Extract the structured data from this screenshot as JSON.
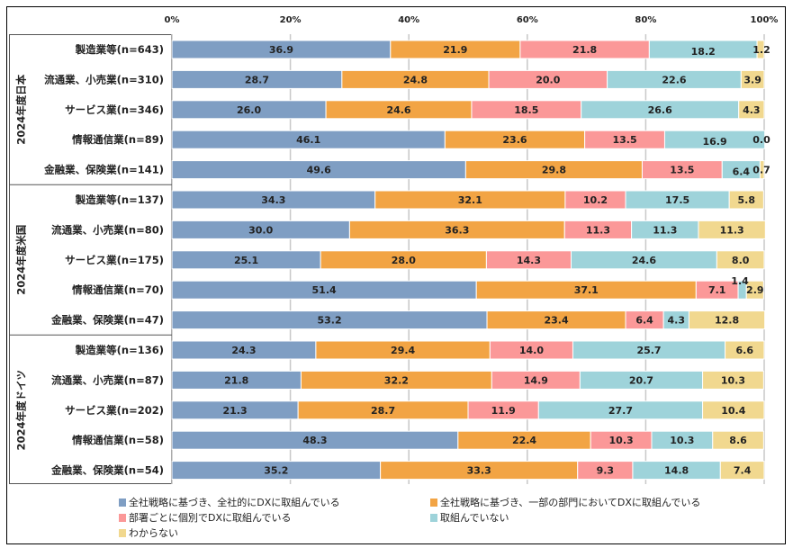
{
  "chart_data": {
    "type": "bar",
    "orientation": "horizontal-stacked-100",
    "title": "",
    "xlabel": "",
    "ylabel": "",
    "xlim": [
      0,
      100
    ],
    "x_ticks": [
      "0%",
      "20%",
      "40%",
      "60%",
      "80%",
      "100%"
    ],
    "grid": true,
    "legend_position": "bottom",
    "series": [
      {
        "name": "全社戦略に基づき、全社的にDXに取組んでいる",
        "color": "#7f9ec3"
      },
      {
        "name": "全社戦略に基づき、一部の部門においてDXに取組んでいる",
        "color": "#f2a444"
      },
      {
        "name": "部署ごとに個別でDXに取組んでいる",
        "color": "#fb9898"
      },
      {
        "name": "取組んでいない",
        "color": "#9ed3da"
      },
      {
        "name": "わからない",
        "color": "#f1d88f"
      }
    ],
    "groups": [
      {
        "name": "2024年度日本",
        "rows": [
          {
            "label": "製造業等(n=643)",
            "values": [
              36.9,
              21.9,
              21.8,
              18.2,
              1.2
            ]
          },
          {
            "label": "流通業、小売業(n=310)",
            "values": [
              28.7,
              24.8,
              20.0,
              22.6,
              3.9
            ]
          },
          {
            "label": "サービス業(n=346)",
            "values": [
              26.0,
              24.6,
              18.5,
              26.6,
              4.3
            ]
          },
          {
            "label": "情報通信業(n=89)",
            "values": [
              46.1,
              23.6,
              13.5,
              16.9,
              0.0
            ]
          },
          {
            "label": "金融業、保険業(n=141)",
            "values": [
              49.6,
              29.8,
              13.5,
              6.4,
              0.7
            ]
          }
        ]
      },
      {
        "name": "2024年度米国",
        "rows": [
          {
            "label": "製造業等(n=137)",
            "values": [
              34.3,
              32.1,
              10.2,
              17.5,
              5.8
            ]
          },
          {
            "label": "流通業、小売業(n=80)",
            "values": [
              30.0,
              36.3,
              11.3,
              11.3,
              11.3
            ]
          },
          {
            "label": "サービス業(n=175)",
            "values": [
              25.1,
              28.0,
              14.3,
              24.6,
              8.0
            ]
          },
          {
            "label": "情報通信業(n=70)",
            "values": [
              51.4,
              37.1,
              7.1,
              1.4,
              2.9
            ]
          },
          {
            "label": "金融業、保険業(n=47)",
            "values": [
              53.2,
              23.4,
              6.4,
              4.3,
              12.8
            ]
          }
        ]
      },
      {
        "name": "2024年度ドイツ",
        "rows": [
          {
            "label": "製造業等(n=136)",
            "values": [
              24.3,
              29.4,
              14.0,
              25.7,
              6.6
            ]
          },
          {
            "label": "流通業、小売業(n=87)",
            "values": [
              21.8,
              32.2,
              14.9,
              20.7,
              10.3
            ]
          },
          {
            "label": "サービス業(n=202)",
            "values": [
              21.3,
              28.7,
              11.9,
              27.7,
              10.4
            ]
          },
          {
            "label": "情報通信業(n=58)",
            "values": [
              48.3,
              22.4,
              10.3,
              10.3,
              8.6
            ]
          },
          {
            "label": "金融業、保険業(n=54)",
            "values": [
              35.2,
              33.3,
              9.3,
              14.8,
              7.4
            ]
          }
        ]
      }
    ]
  }
}
